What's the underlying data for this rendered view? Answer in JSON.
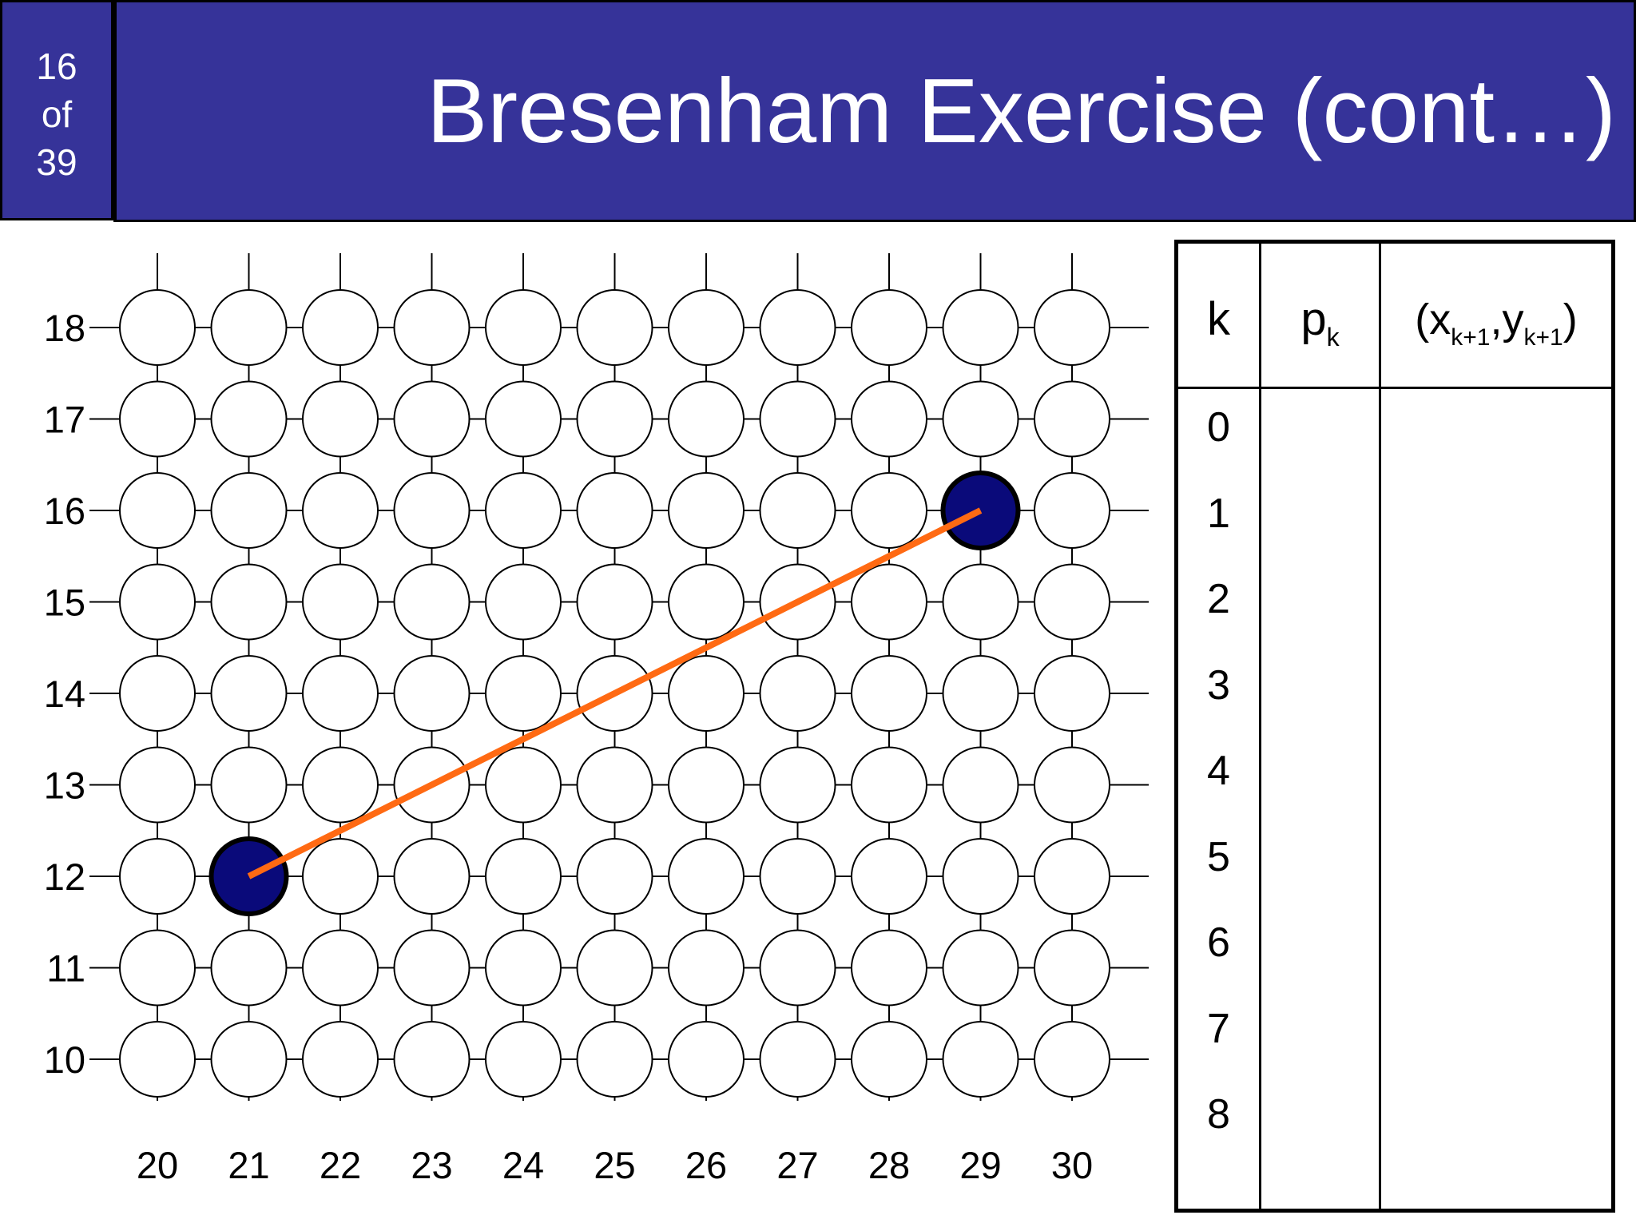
{
  "slide": {
    "page_current": "16",
    "page_of": "of",
    "page_total": "39",
    "title": "Bresenham Exercise (cont…)"
  },
  "grid": {
    "x_labels": [
      "20",
      "21",
      "22",
      "23",
      "24",
      "25",
      "26",
      "27",
      "28",
      "29",
      "30"
    ],
    "y_labels": [
      "18",
      "17",
      "16",
      "15",
      "14",
      "13",
      "12",
      "11",
      "10"
    ],
    "x_range": [
      20,
      30
    ],
    "y_range": [
      10,
      18
    ],
    "line_start": [
      21,
      12
    ],
    "line_end": [
      29,
      16
    ],
    "filled_pixels": [
      [
        21,
        12
      ],
      [
        29,
        16
      ]
    ],
    "colors": {
      "filled_pixel": "#0a0a7a",
      "line": "#ff6a13",
      "title_bar": "#363399"
    }
  },
  "table": {
    "headers": {
      "k": "k",
      "p": "p",
      "p_sub": "k",
      "xy_open": "(x",
      "xy_sub1": "k+1",
      "xy_mid": ",y",
      "xy_sub2": "k+1",
      "xy_close": ")"
    },
    "k_values": [
      "0",
      "1",
      "2",
      "3",
      "4",
      "5",
      "6",
      "7",
      "8"
    ]
  }
}
